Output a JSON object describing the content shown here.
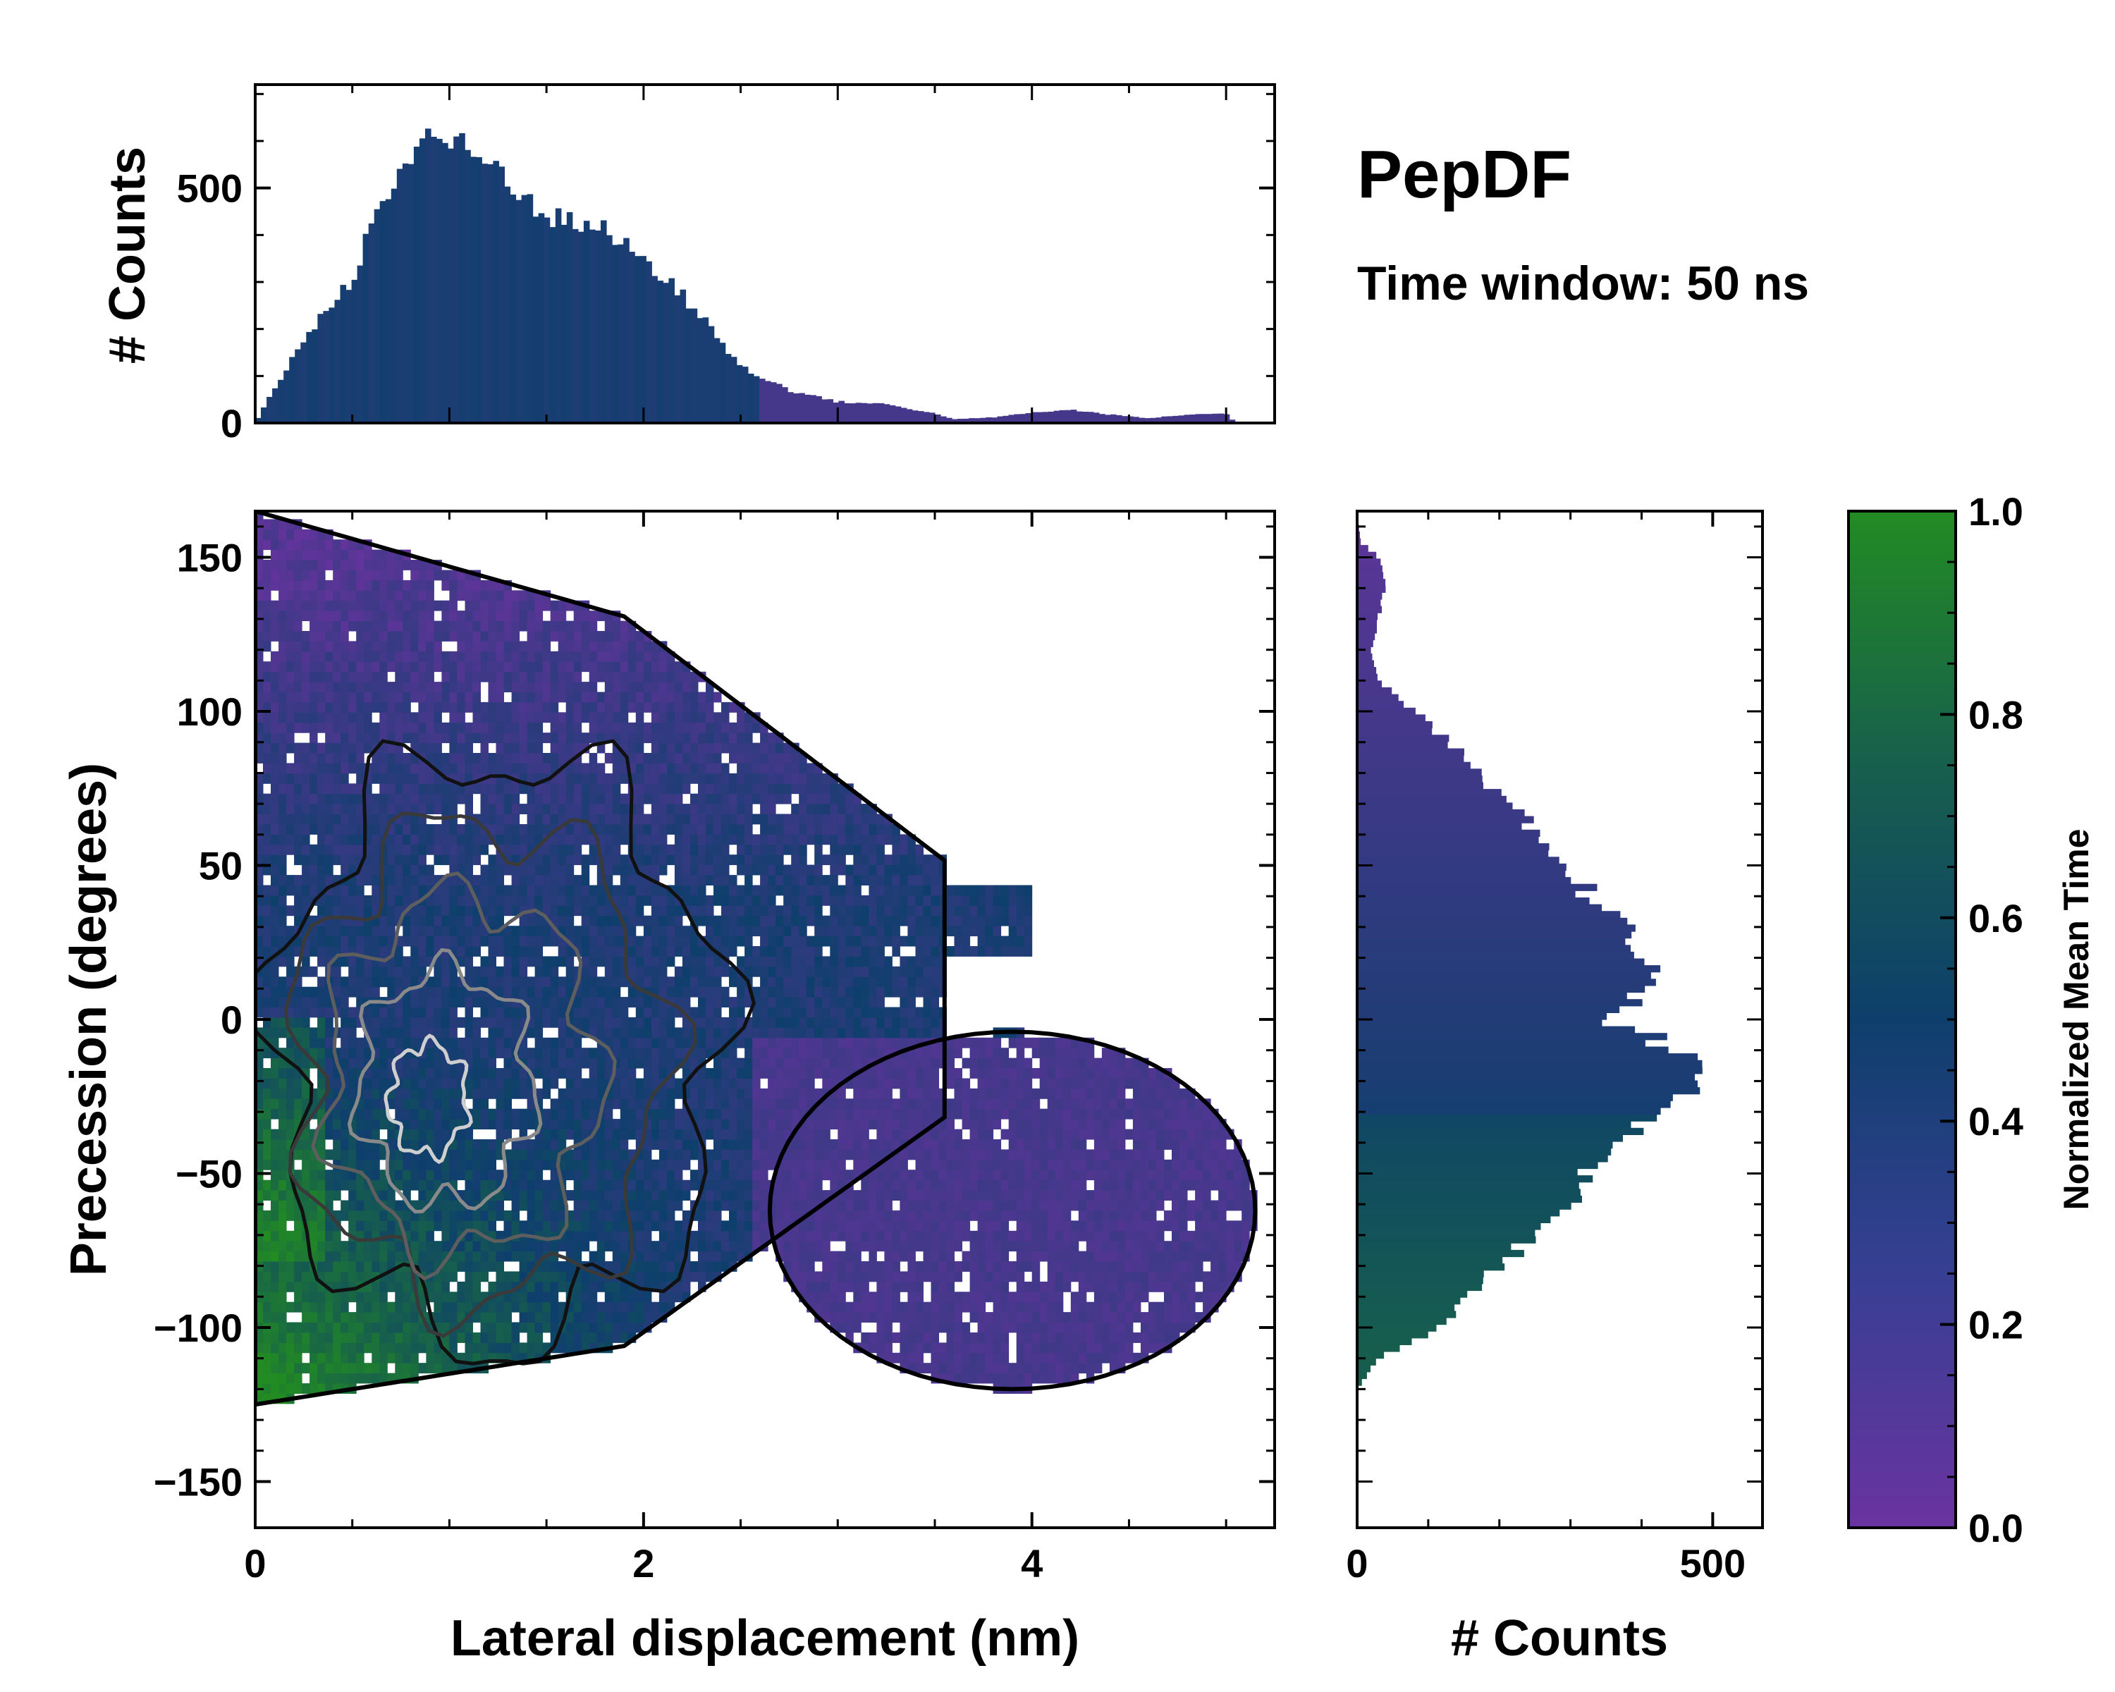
{
  "chart_data": {
    "type": "heatmap",
    "title": "PepDF",
    "subtitle": "Time window: 50 ns",
    "colors": {
      "low": "#6a33a0",
      "mid": "#0e3f6c",
      "high": "#228b22"
    },
    "main": {
      "xlabel": "Lateral displacement (nm)",
      "ylabel": "Precession (degrees)",
      "xlim": [
        0,
        5.25
      ],
      "ylim": [
        -165,
        165
      ],
      "xticks": [
        "0",
        "2",
        "4"
      ],
      "xtick_values": [
        0,
        2,
        4
      ],
      "yticks": [
        "150",
        "100",
        "50",
        "0",
        "−50",
        "−100",
        "−150"
      ],
      "ytick_values": [
        150,
        100,
        50,
        0,
        -50,
        -100,
        -150
      ],
      "z_label": "Normalized Mean Time",
      "regions": [
        {
          "name": "top-left purple lobe",
          "x": [
            0.0,
            2.2
          ],
          "y": [
            60,
            163
          ],
          "mean_time": 0.12
        },
        {
          "name": "central blue core",
          "x": [
            0.3,
            3.4
          ],
          "y": [
            -60,
            110
          ],
          "mean_time": 0.4
        },
        {
          "name": "lower-left green lobe",
          "x": [
            0.0,
            1.8
          ],
          "y": [
            -125,
            -10
          ],
          "mean_time": 0.88
        },
        {
          "name": "right purple lobe",
          "x": [
            2.5,
            5.15
          ],
          "y": [
            -122,
            -5
          ],
          "mean_time": 0.16
        }
      ]
    },
    "top_histogram": {
      "ylabel": "# Counts",
      "yticks": [
        "0",
        "500"
      ],
      "ytick_values": [
        0,
        500
      ],
      "ylim": [
        0,
        720
      ],
      "x": [
        0.0,
        0.25,
        0.5,
        0.6,
        0.75,
        0.9,
        1.0,
        1.25,
        1.5,
        1.75,
        2.0,
        2.25,
        2.5,
        2.75,
        3.0,
        3.25,
        3.5,
        3.6,
        3.8,
        4.0,
        4.2,
        4.4,
        4.6,
        4.8,
        5.0,
        5.05
      ],
      "counts": [
        0,
        180,
        310,
        420,
        540,
        620,
        600,
        540,
        440,
        420,
        350,
        250,
        120,
        70,
        45,
        40,
        20,
        8,
        12,
        22,
        28,
        18,
        10,
        18,
        20,
        0
      ]
    },
    "right_histogram": {
      "xlabel": "# Counts",
      "xticks": [
        "0",
        "500"
      ],
      "xtick_values": [
        0,
        500
      ],
      "xlim": [
        0,
        570
      ],
      "y": [
        165,
        155,
        150,
        140,
        120,
        110,
        100,
        90,
        80,
        60,
        40,
        20,
        10,
        0,
        -10,
        -20,
        -30,
        -40,
        -60,
        -80,
        -100,
        -110,
        -120
      ],
      "counts": [
        0,
        5,
        30,
        40,
        20,
        30,
        80,
        130,
        170,
        260,
        330,
        400,
        400,
        350,
        460,
        500,
        440,
        360,
        300,
        200,
        120,
        30,
        0
      ]
    },
    "colorbar": {
      "label": "Normalized Mean Time",
      "ticks": [
        "0.0",
        "0.2",
        "0.4",
        "0.6",
        "0.8",
        "1.0"
      ],
      "tick_values": [
        0,
        0.2,
        0.4,
        0.6,
        0.8,
        1.0
      ]
    }
  }
}
